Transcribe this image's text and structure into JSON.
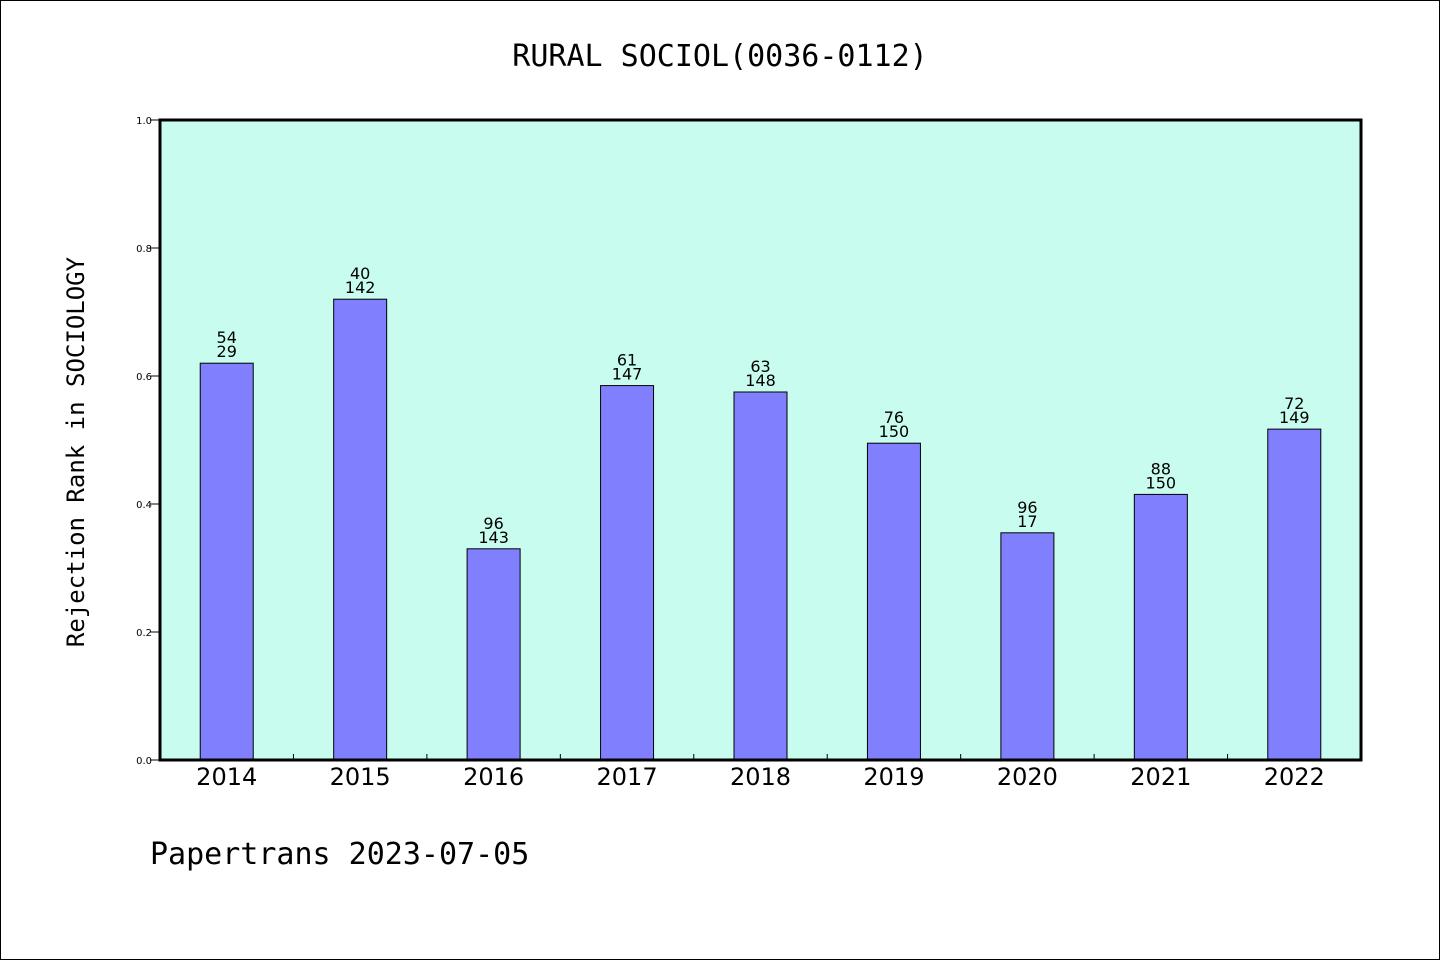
{
  "chart_data": {
    "type": "bar",
    "title": "RURAL SOCIOL(0036-0112)",
    "xlabel": "",
    "ylabel": "Rejection Rank in SOCIOLOGY",
    "ylim": [
      0,
      1.0
    ],
    "yticks": [
      "0.0",
      "0.2",
      "0.4",
      "0.6",
      "0.8",
      "1.0"
    ],
    "categories": [
      "2014",
      "2015",
      "2016",
      "2017",
      "2018",
      "2019",
      "2020",
      "2021",
      "2022"
    ],
    "values": [
      0.62,
      0.72,
      0.33,
      0.585,
      0.575,
      0.495,
      0.355,
      0.415,
      0.517
    ],
    "labels_top": [
      "54",
      "40",
      "96",
      "61",
      "63",
      "76",
      "96",
      "88",
      "72"
    ],
    "labels_bottom": [
      "29",
      "142",
      "143",
      "147",
      "148",
      "150",
      "17",
      "150",
      "149"
    ],
    "grid": false,
    "colors": {
      "plot_background": "#c8fcee",
      "bar_fill": "#8080ff",
      "bar_stroke": "#000000"
    }
  },
  "footer": "Papertrans 2023-07-05"
}
